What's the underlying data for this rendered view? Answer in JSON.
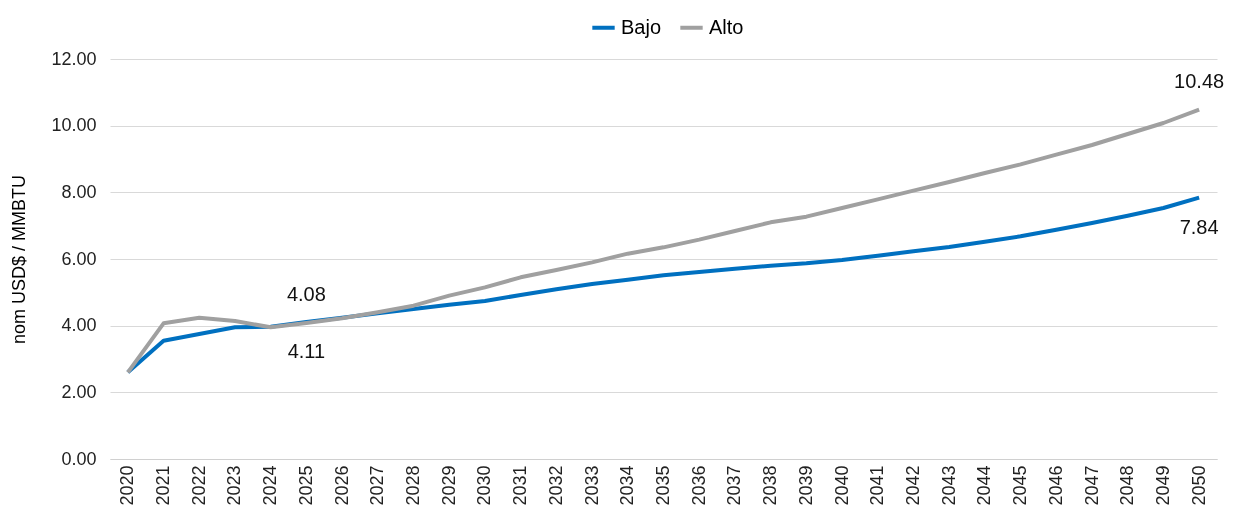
{
  "chart_data": {
    "type": "line",
    "ylabel": "nom USD$ / MMBTU",
    "categories": [
      "2020",
      "2021",
      "2022",
      "2023",
      "2024",
      "2025",
      "2026",
      "2027",
      "2028",
      "2029",
      "2030",
      "2031",
      "2032",
      "2033",
      "2034",
      "2035",
      "2036",
      "2037",
      "2038",
      "2039",
      "2040",
      "2041",
      "2042",
      "2043",
      "2044",
      "2045",
      "2046",
      "2047",
      "2048",
      "2049",
      "2050"
    ],
    "series": [
      {
        "name": "Bajo",
        "color": "#0070c0",
        "values": [
          2.6,
          3.55,
          3.75,
          3.95,
          3.97,
          4.11,
          4.24,
          4.37,
          4.5,
          4.63,
          4.74,
          4.92,
          5.09,
          5.25,
          5.38,
          5.51,
          5.61,
          5.71,
          5.8,
          5.87,
          5.97,
          6.1,
          6.23,
          6.36,
          6.52,
          6.68,
          6.88,
          7.08,
          7.3,
          7.53,
          7.84
        ],
        "value_labels": [
          null,
          null,
          null,
          null,
          null,
          "4.11",
          null,
          null,
          null,
          null,
          null,
          null,
          null,
          null,
          null,
          null,
          null,
          null,
          null,
          null,
          null,
          null,
          null,
          null,
          null,
          null,
          null,
          null,
          null,
          null,
          "7.84"
        ]
      },
      {
        "name": "Alto",
        "color": "#a0a0a0",
        "values": [
          2.6,
          4.07,
          4.24,
          4.14,
          3.95,
          4.08,
          4.22,
          4.4,
          4.6,
          4.9,
          5.15,
          5.45,
          5.67,
          5.9,
          6.16,
          6.35,
          6.58,
          6.84,
          7.1,
          7.27,
          7.53,
          7.79,
          8.05,
          8.31,
          8.58,
          8.84,
          9.13,
          9.42,
          9.75,
          10.08,
          10.48
        ],
        "value_labels": [
          null,
          null,
          null,
          null,
          null,
          "4.08",
          null,
          null,
          null,
          null,
          null,
          null,
          null,
          null,
          null,
          null,
          null,
          null,
          null,
          null,
          null,
          null,
          null,
          null,
          null,
          null,
          null,
          null,
          null,
          null,
          "10.48"
        ]
      }
    ],
    "ylim": [
      0,
      12
    ],
    "yticks": [
      {
        "value": 0,
        "label": "0.00"
      },
      {
        "value": 2,
        "label": "2.00"
      },
      {
        "value": 4,
        "label": "4.00"
      },
      {
        "value": 6,
        "label": "6.00"
      },
      {
        "value": 8,
        "label": "8.00"
      },
      {
        "value": 10,
        "label": "10.00"
      },
      {
        "value": 12,
        "label": "12.00"
      }
    ],
    "grid": "y",
    "legend": "top",
    "marker": "none",
    "line_style": "solid"
  }
}
